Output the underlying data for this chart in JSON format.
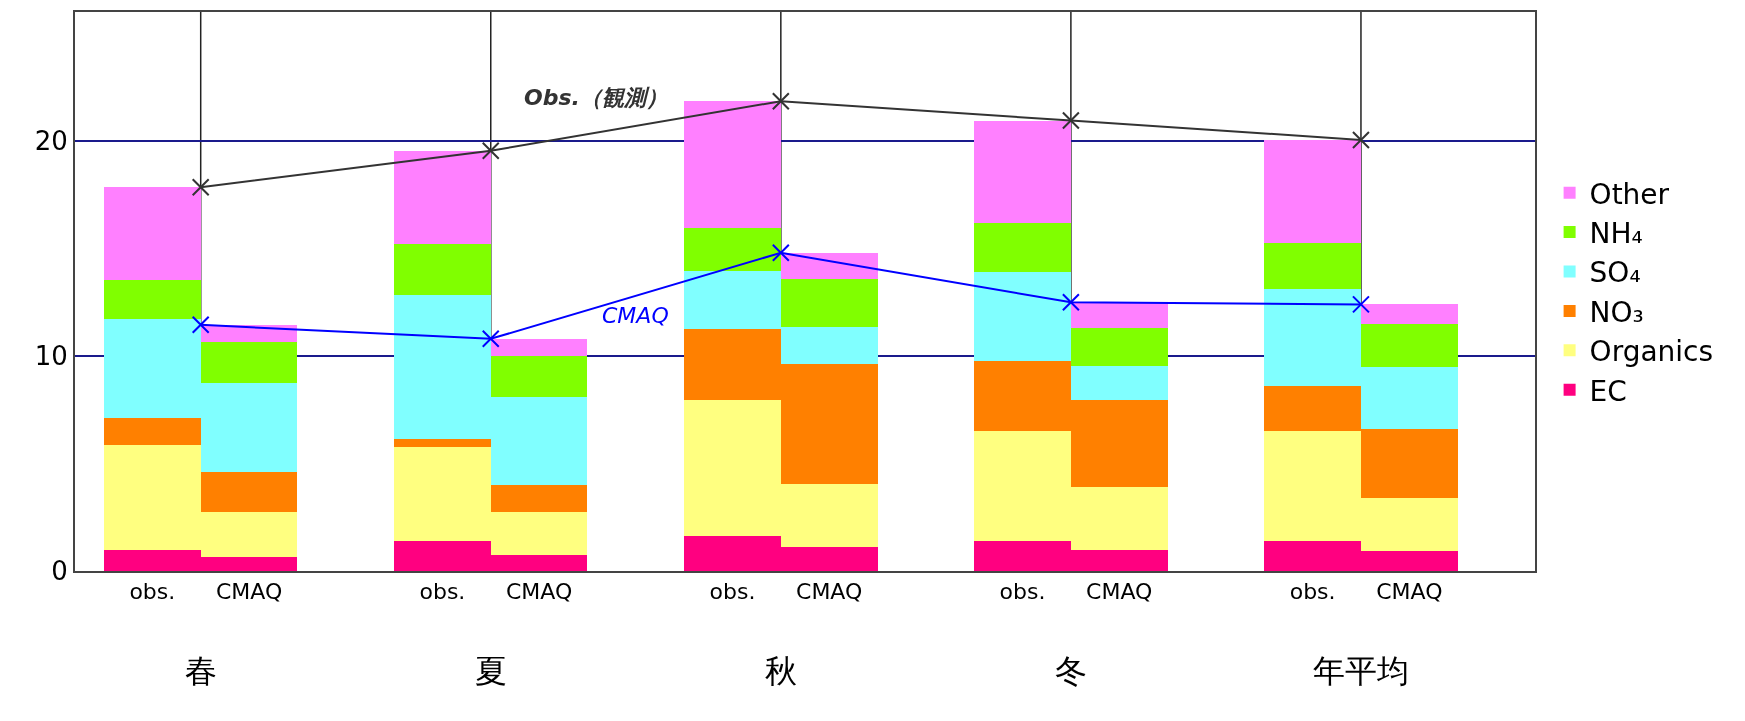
{
  "chart_data": {
    "type": "bar",
    "stacked": true,
    "categories": [
      "obs.",
      "CMAQ",
      "obs.",
      "CMAQ",
      "obs.",
      "CMAQ",
      "obs.",
      "CMAQ",
      "obs.",
      "CMAQ"
    ],
    "annotations": [
      "春",
      "夏",
      "秋",
      "冬",
      "年平均"
    ],
    "series": [
      {
        "name": "EC",
        "color": "#ff0080",
        "values": [
          1.0,
          0.65,
          1.4,
          0.75,
          1.65,
          1.1,
          1.4,
          1.0,
          1.4,
          0.95
        ]
      },
      {
        "name": "Organics",
        "color": "#ffff80",
        "values": [
          4.85,
          2.1,
          4.35,
          2.0,
          6.3,
          2.95,
          5.1,
          2.9,
          5.1,
          2.45
        ]
      },
      {
        "name": "NO₃",
        "color": "#ff8000",
        "values": [
          1.25,
          1.85,
          0.4,
          1.25,
          3.3,
          5.6,
          3.25,
          4.05,
          2.1,
          3.2
        ]
      },
      {
        "name": "SO₄",
        "color": "#80ffff",
        "values": [
          4.6,
          4.15,
          6.7,
          4.1,
          2.7,
          1.7,
          4.15,
          1.6,
          4.5,
          2.9
        ]
      },
      {
        "name": "NH₄",
        "color": "#80ff00",
        "values": [
          1.85,
          1.9,
          2.35,
          1.9,
          2.0,
          2.25,
          2.3,
          1.75,
          2.15,
          2.0
        ]
      },
      {
        "name": "Other",
        "color": "#ff80ff",
        "values": [
          4.3,
          0.8,
          4.35,
          0.8,
          5.9,
          1.2,
          4.75,
          1.2,
          4.8,
          0.9
        ]
      },
      {
        "name": "Obs.（観測）",
        "type": "line",
        "color": "#333333",
        "marker": "cross",
        "values": [
          17.85,
          null,
          19.55,
          null,
          21.85,
          null,
          20.95,
          null,
          20.05,
          null
        ]
      },
      {
        "name": "CMAQ",
        "type": "line",
        "color": "#0000ff",
        "marker": "cross",
        "values": [
          null,
          11.45,
          null,
          10.8,
          null,
          14.8,
          null,
          12.5,
          null,
          12.4
        ]
      }
    ],
    "ylim": [
      0,
      26
    ],
    "yticks": [
      0,
      10,
      20
    ],
    "grid": true,
    "legend": "right"
  }
}
